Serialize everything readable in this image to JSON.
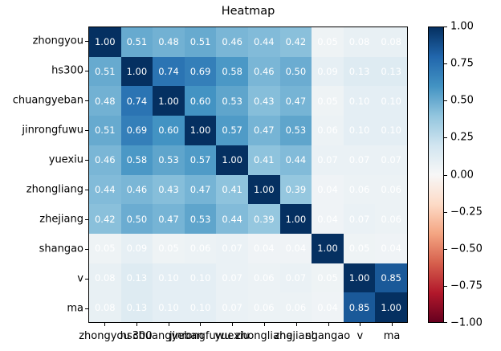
{
  "chart_data": {
    "type": "heatmap",
    "title": "Heatmap",
    "categories": [
      "zhongyou",
      "hs300",
      "chuangyeban",
      "jinrongfuwu",
      "yuexiu",
      "zhongliang",
      "zhejiang",
      "shangao",
      "v",
      "ma"
    ],
    "matrix": [
      [
        1.0,
        0.51,
        0.48,
        0.51,
        0.46,
        0.44,
        0.42,
        0.05,
        0.08,
        0.08
      ],
      [
        0.51,
        1.0,
        0.74,
        0.69,
        0.58,
        0.46,
        0.5,
        0.09,
        0.13,
        0.13
      ],
      [
        0.48,
        0.74,
        1.0,
        0.6,
        0.53,
        0.43,
        0.47,
        0.05,
        0.1,
        0.1
      ],
      [
        0.51,
        0.69,
        0.6,
        1.0,
        0.57,
        0.47,
        0.53,
        0.06,
        0.1,
        0.1
      ],
      [
        0.46,
        0.58,
        0.53,
        0.57,
        1.0,
        0.41,
        0.44,
        0.07,
        0.07,
        0.07
      ],
      [
        0.44,
        0.46,
        0.43,
        0.47,
        0.41,
        1.0,
        0.39,
        0.04,
        0.06,
        0.06
      ],
      [
        0.42,
        0.5,
        0.47,
        0.53,
        0.44,
        0.39,
        1.0,
        0.04,
        0.07,
        0.06
      ],
      [
        0.05,
        0.09,
        0.05,
        0.06,
        0.07,
        0.04,
        0.04,
        1.0,
        0.05,
        0.04
      ],
      [
        0.08,
        0.13,
        0.1,
        0.1,
        0.07,
        0.06,
        0.07,
        0.05,
        1.0,
        0.85
      ],
      [
        0.08,
        0.13,
        0.1,
        0.1,
        0.07,
        0.06,
        0.06,
        0.04,
        0.85,
        1.0
      ]
    ],
    "value_format_decimals": 2,
    "vmin": -1,
    "vmax": 1,
    "colormap_name": "RdBu",
    "colormap_stops": [
      "#67001f",
      "#b2182b",
      "#d6604d",
      "#f4a582",
      "#fddbc7",
      "#f7f7f7",
      "#d1e5f0",
      "#92c5de",
      "#4393c3",
      "#2166ac",
      "#053061"
    ],
    "cell_text_color": "#ffffff",
    "axes_border_color": "#000000",
    "colorbar_ticks": [
      "1.00",
      "0.75",
      "0.50",
      "0.25",
      "0.00",
      "−0.25",
      "−0.50",
      "−0.75",
      "−1.00"
    ],
    "legend_position": "right-colorbar",
    "grid": false
  }
}
